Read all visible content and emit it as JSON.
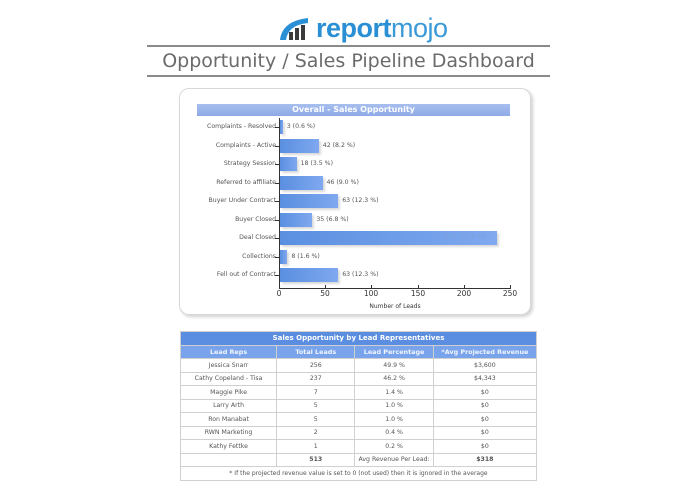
{
  "header": {
    "logo_text_bold": "report",
    "logo_text_light": "mojo",
    "logo_icon": "bar-chart-signal-icon",
    "brand_color": "#2a8fd4",
    "page_title": "Opportunity / Sales Pipeline Dashboard"
  },
  "chart_data": {
    "type": "bar",
    "orientation": "horizontal",
    "title": "Overall - Sales Opportunity",
    "xlabel": "Number of Leads",
    "ylabel": "",
    "xlim": [
      0,
      250
    ],
    "xticks": [
      0,
      50,
      100,
      150,
      200,
      250
    ],
    "grid": false,
    "bar_color": "#6a98e6",
    "categories": [
      "Complaints - Resolved",
      "Complaints - Active",
      "Strategy Session",
      "Referred to affiliate",
      "Buyer Under Contract",
      "Buyer Closed",
      "Deal Closed",
      "Collections",
      "Fell out of Contract"
    ],
    "values": [
      3,
      42,
      18,
      46,
      63,
      35,
      235,
      8,
      63
    ],
    "percentages": [
      "0.6 %",
      "8.2 %",
      "3.5 %",
      "9.0 %",
      "12.3 %",
      "6.8 %",
      "45.8 %",
      "1.6 %",
      "12.3 %"
    ],
    "data_labels": [
      "3 (0.6 %)",
      "42 (8.2 %)",
      "18 (3.5 %)",
      "46 (9.0 %)",
      "63 (12.3 %)",
      "35 (6.8 %)",
      "235 (45.8 %)",
      "8 (1.6 %)",
      "63 (12.3 %)"
    ]
  },
  "table": {
    "title": "Sales Opportunity by Lead Representatives",
    "columns": [
      "Lead Reps",
      "Total Leads",
      "Lead Percentage",
      "*Avg Projected Revenue"
    ],
    "rows": [
      {
        "rep": "Jessica Snarr",
        "total": "256",
        "pct": "49.9 %",
        "rev": "$3,600"
      },
      {
        "rep": "Cathy Copeland - Tisa",
        "total": "237",
        "pct": "46.2 %",
        "rev": "$4,343"
      },
      {
        "rep": "Maggie Pike",
        "total": "7",
        "pct": "1.4 %",
        "rev": "$0"
      },
      {
        "rep": "Larry Arth",
        "total": "5",
        "pct": "1.0 %",
        "rev": "$0"
      },
      {
        "rep": "Ron Manabat",
        "total": "5",
        "pct": "1.0 %",
        "rev": "$0"
      },
      {
        "rep": "RWN Marketing",
        "total": "2",
        "pct": "0.4 %",
        "rev": "$0"
      },
      {
        "rep": "Kathy Fettke",
        "total": "1",
        "pct": "0.2 %",
        "rev": "$0"
      }
    ],
    "total_leads": "513",
    "avg_label": "Avg Revenue Per Lead:",
    "avg_value": "$318",
    "footnote": "* If the projected revenue value is set to 0 (not used) then it is ignored in the average",
    "header_color": "#5b8de0",
    "subheader_color": "#79a4ec"
  }
}
